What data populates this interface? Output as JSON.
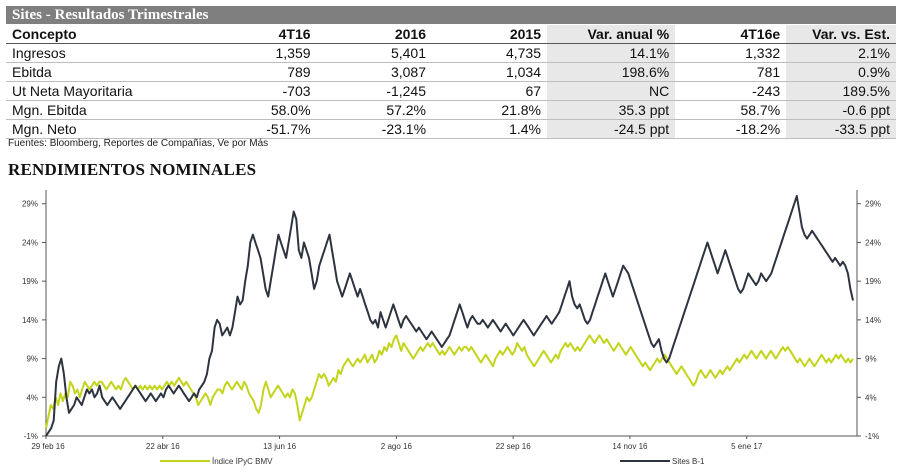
{
  "table": {
    "title": "Sites - Resultados Trimestrales",
    "headers": [
      "Concepto",
      "4T16",
      "2016",
      "2015",
      "Var. anual %",
      "4T16e",
      "Var. vs. Est."
    ],
    "rows": [
      [
        "Ingresos",
        "1,359",
        "5,401",
        "4,735",
        "14.1%",
        "1,332",
        "2.1%"
      ],
      [
        "Ebitda",
        "789",
        "3,087",
        "1,034",
        "198.6%",
        "781",
        "0.9%"
      ],
      [
        "Ut Neta Mayoritaria",
        "-703",
        "-1,245",
        "67",
        "NC",
        "-243",
        "189.5%"
      ],
      [
        "Mgn. Ebitda",
        "58.0%",
        "57.2%",
        "21.8%",
        "35.3 ppt",
        "58.7%",
        "-0.6 ppt"
      ],
      [
        "Mgn. Neto",
        "-51.7%",
        "-23.1%",
        "1.4%",
        "-24.5 ppt",
        "-18.2%",
        "-33.5 ppt"
      ]
    ],
    "sources": "Fuentes: Bloomberg, Reportes de Compañías, Ve por Más"
  },
  "section_title": "RENDIMIENTOS NOMINALES",
  "chart_data": {
    "type": "line",
    "title": "RENDIMIENTOS NOMINALES",
    "x_tick_labels": [
      "29 feb 16",
      "22 abr 16",
      "13 jun 16",
      "2 ago 16",
      "22 sep 16",
      "14 nov 16",
      "5 ene 17"
    ],
    "y_ticks": [
      "-1%",
      "4%",
      "9%",
      "14%",
      "19%",
      "24%",
      "29%"
    ],
    "ylim": [
      -1,
      30
    ],
    "y_axis_sides": [
      "left",
      "right"
    ],
    "grid": false,
    "legend_position": "bottom",
    "series": [
      {
        "name": "Índice IPyC BMV",
        "color": "#c3d41c",
        "values": [
          0,
          1.5,
          3,
          2.5,
          4,
          3,
          4.5,
          3.5,
          4.5,
          4,
          6,
          5.5,
          4.5,
          5,
          4,
          5,
          6,
          5.5,
          5,
          5.5,
          6,
          5.5,
          6,
          6,
          5.5,
          5,
          5.5,
          6,
          5.5,
          5,
          5.5,
          5,
          6,
          6.5,
          6,
          5.5,
          5,
          5.5,
          5,
          5.5,
          5,
          5.5,
          5,
          5.5,
          5,
          5.5,
          5,
          5.5,
          5,
          5.5,
          6,
          5.5,
          6,
          5.5,
          6,
          6.5,
          6,
          5.5,
          6,
          5.5,
          5,
          4.5,
          4,
          3,
          3.5,
          4,
          4.5,
          4,
          3,
          4,
          4.5,
          5,
          5,
          4.5,
          5.5,
          6,
          5.5,
          5,
          5.5,
          6,
          5.5,
          5,
          6,
          5.5,
          4.5,
          4,
          3.5,
          2.5,
          2,
          3,
          5,
          6,
          5,
          4,
          4.5,
          5,
          5.5,
          5,
          4.5,
          4,
          4.5,
          4,
          5,
          4.5,
          3,
          1,
          2,
          3,
          4,
          3.5,
          4,
          5,
          6,
          7,
          6.5,
          7,
          6.5,
          5.5,
          6,
          6.5,
          6,
          7.5,
          7,
          8,
          8.5,
          9,
          8.5,
          8,
          8.5,
          9,
          8.5,
          9,
          9.5,
          8.5,
          9,
          9.5,
          8.5,
          9,
          10,
          9.5,
          10.5,
          10,
          11,
          10.5,
          11.5,
          12,
          11,
          10,
          11,
          10.5,
          10,
          9.5,
          9,
          9.5,
          10,
          10.5,
          10,
          10.5,
          11,
          10.5,
          11,
          10.5,
          10,
          9.5,
          10,
          9.5,
          10,
          10.5,
          10,
          9.5,
          10,
          10.5,
          10,
          10.5,
          10.5,
          10,
          10.5,
          10,
          9.5,
          9,
          8.5,
          9,
          9.5,
          9,
          8.5,
          8,
          9,
          9.5,
          10,
          9.5,
          10,
          10.5,
          10,
          9.5,
          10,
          11,
          10.5,
          10,
          10.5,
          9.5,
          9,
          8.5,
          8,
          8.5,
          9,
          9.5,
          10,
          9.5,
          9,
          8.5,
          9,
          9.5,
          9,
          10,
          10.5,
          11,
          10.5,
          11,
          10.5,
          10,
          10.5,
          10,
          10.5,
          11,
          11.5,
          12,
          11.5,
          11,
          11.5,
          12,
          11.5,
          11,
          11.5,
          11,
          10.5,
          10,
          10.5,
          11,
          10.5,
          10,
          9.5,
          10,
          10.5,
          10,
          9.5,
          9,
          8.5,
          8,
          8.5,
          8,
          7.5,
          8,
          8.5,
          9,
          8.5,
          9,
          9.5,
          9,
          8.5,
          8,
          7.5,
          7,
          7.5,
          8,
          7.5,
          7,
          6.5,
          6,
          5.5,
          6,
          7,
          7.5,
          7,
          6.5,
          7,
          7.5,
          7,
          6.5,
          7,
          7.5,
          7,
          7.5,
          8,
          7.5,
          8,
          8.5,
          9,
          8.5,
          9,
          9.5,
          9,
          9.5,
          10,
          9.5,
          9,
          9.5,
          10,
          9.5,
          9,
          9.5,
          10,
          9.5,
          9,
          9.5,
          10,
          10.5,
          10,
          10.5,
          10,
          9.5,
          9,
          8.5,
          9,
          8.5,
          8,
          8.5,
          9,
          8.5,
          8,
          8.5,
          9,
          9.5,
          9,
          8.5,
          9,
          8.5,
          9,
          9.5,
          9,
          9.5,
          9,
          8.5,
          9,
          8.5,
          9
        ]
      },
      {
        "name": "Sites B-1",
        "color": "#2d3440",
        "values": [
          -1,
          -0.5,
          0,
          1,
          6,
          8,
          9,
          7,
          4,
          2,
          2.5,
          3,
          4,
          3.5,
          3,
          4,
          5,
          4.5,
          5,
          4,
          4.5,
          5.5,
          4,
          3.5,
          3,
          3.5,
          4,
          3.5,
          3,
          2.5,
          3,
          3.5,
          4,
          4.5,
          5,
          5.5,
          5,
          4.5,
          4,
          3.5,
          4,
          4.5,
          4,
          3.5,
          4,
          4.5,
          4,
          5,
          5.5,
          5,
          4.5,
          5,
          5.5,
          5,
          4.5,
          4,
          3.5,
          4,
          4.5,
          4,
          5,
          5.5,
          6,
          7,
          9,
          10,
          13,
          14,
          13.5,
          12,
          12.5,
          13,
          12,
          13,
          15,
          17,
          16,
          16.5,
          19,
          21,
          24,
          25,
          24,
          23,
          22,
          20,
          18,
          17,
          19,
          21,
          23,
          25,
          24,
          23,
          22,
          24,
          26,
          28,
          27,
          23,
          22,
          24,
          23,
          22,
          20,
          18,
          19,
          21,
          22,
          23,
          24,
          25,
          23,
          21,
          19,
          18,
          17,
          18,
          19,
          20,
          19,
          18,
          17,
          18,
          17,
          16,
          15,
          14,
          13.5,
          14,
          13,
          15,
          14,
          13,
          14,
          15,
          16,
          15,
          14,
          13,
          14,
          14.5,
          14,
          13.5,
          13,
          12.5,
          13,
          12.5,
          12,
          11.5,
          12,
          12.5,
          12,
          11.5,
          11,
          10.5,
          11,
          11.5,
          12,
          13,
          14,
          15,
          16,
          15,
          14,
          13,
          14,
          14.5,
          14,
          13.5,
          13.5,
          14,
          13.5,
          13,
          13.5,
          14,
          13.5,
          13,
          12.5,
          13,
          13.5,
          13,
          12.5,
          12,
          12.5,
          13,
          13.5,
          14,
          13.5,
          13,
          12.5,
          12,
          12.5,
          13,
          13.5,
          14,
          14.5,
          14,
          13.5,
          14,
          14.5,
          15,
          16,
          17,
          18,
          19,
          17,
          16,
          15.5,
          16,
          15,
          14,
          13.5,
          14,
          15,
          16,
          17,
          18,
          19,
          20,
          19,
          18,
          17,
          18,
          19,
          20,
          21,
          20.5,
          20,
          19,
          18,
          17,
          16,
          15,
          14,
          13,
          12,
          11,
          10.5,
          11,
          11.5,
          10,
          9,
          8.5,
          9,
          10,
          11,
          12,
          13,
          14,
          15,
          16,
          17,
          18,
          19,
          20,
          21,
          22,
          23,
          24,
          23,
          22,
          21,
          20,
          21,
          22,
          23,
          22,
          21,
          20,
          19,
          18,
          17.5,
          18,
          19,
          20,
          19.5,
          19,
          18.5,
          19,
          20,
          19.5,
          19,
          19.5,
          20,
          21,
          22,
          23,
          24,
          25,
          26,
          27,
          28,
          29,
          30,
          28,
          26,
          25,
          24.5,
          25,
          25.5,
          25,
          24.5,
          24,
          23.5,
          23,
          22.5,
          22,
          21.5,
          22,
          21.5,
          21,
          21.5,
          21,
          20,
          18,
          16.5
        ]
      }
    ]
  }
}
